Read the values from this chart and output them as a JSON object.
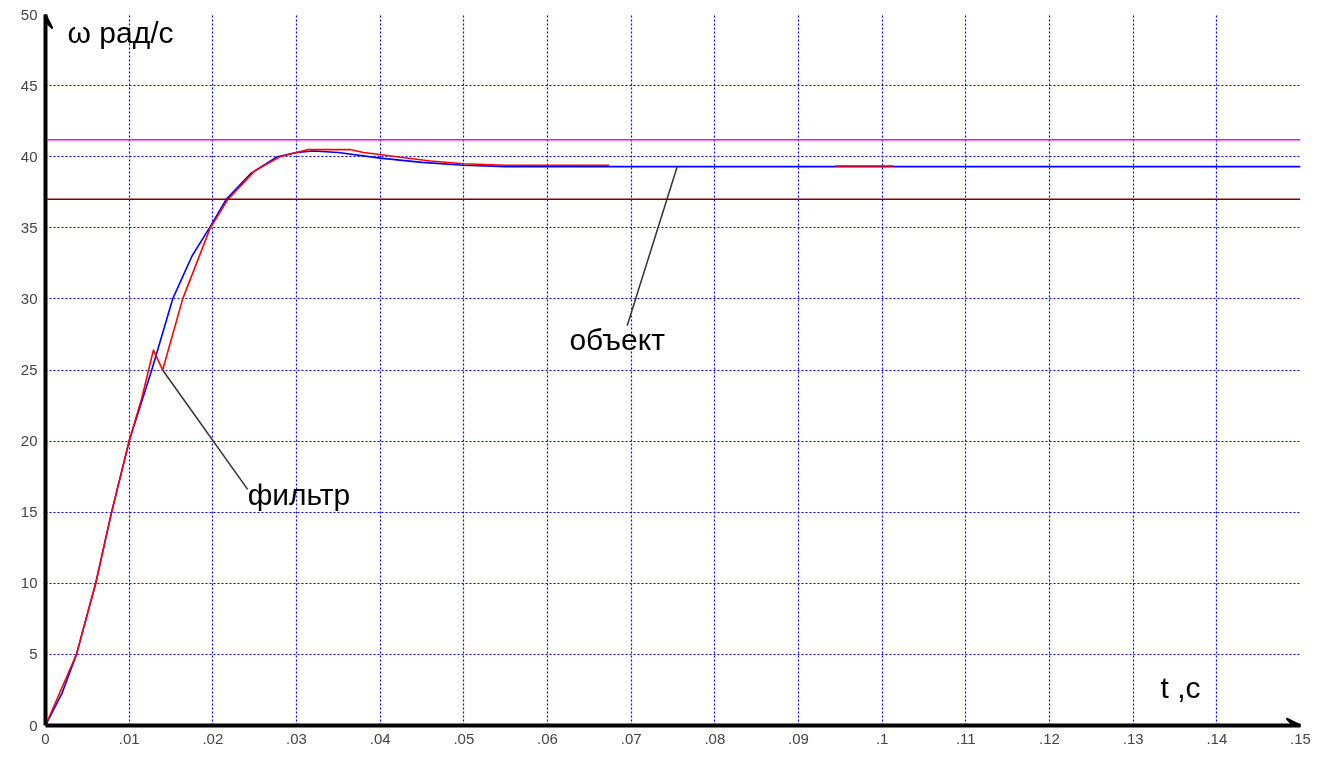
{
  "chart_data": {
    "type": "line",
    "xlabel": "t ,c",
    "ylabel": "ω  рад/с",
    "xlim": [
      0,
      0.15
    ],
    "ylim": [
      0,
      50
    ],
    "xticks": [
      0,
      {
        "value": 0.01,
        "label": ".01"
      },
      {
        "value": 0.02,
        "label": ".02"
      },
      {
        "value": 0.03,
        "label": ".03"
      },
      {
        "value": 0.04,
        "label": ".04"
      },
      {
        "value": 0.05,
        "label": ".05"
      },
      {
        "value": 0.06,
        "label": ".06"
      },
      {
        "value": 0.07,
        "label": ".07"
      },
      {
        "value": 0.08,
        "label": ".08"
      },
      {
        "value": 0.09,
        "label": ".09"
      },
      {
        "value": 0.1,
        "label": ".1"
      },
      {
        "value": 0.11,
        "label": ".11"
      },
      {
        "value": 0.12,
        "label": ".12"
      },
      {
        "value": 0.13,
        "label": ".13"
      },
      {
        "value": 0.14,
        "label": ".14"
      },
      {
        "value": 0.15,
        "label": ".15"
      }
    ],
    "yticks": [
      0,
      5,
      10,
      15,
      20,
      25,
      30,
      35,
      40,
      45,
      50
    ],
    "grid": true,
    "line_style": "solid",
    "marker": "none",
    "series": [
      {
        "color": "#0000ff",
        "x": [
          0,
          0.002,
          0.0037,
          0.006,
          0.0079,
          0.01,
          0.0127,
          0.0152,
          0.0175,
          0.0196,
          0.0216,
          0.0245,
          0.0277,
          0.03,
          0.032,
          0.035,
          0.04,
          0.045,
          0.05,
          0.055,
          0.06,
          0.08,
          0.1,
          0.12,
          0.15
        ],
        "values": [
          0,
          2.3,
          5,
          10,
          15,
          20,
          25,
          30,
          33,
          35,
          37,
          38.8,
          40,
          40.3,
          40.4,
          40.3,
          39.9,
          39.6,
          39.4,
          39.3,
          39.3,
          39.3,
          39.3,
          39.3,
          39.3
        ]
      },
      {
        "color": "#ff0000",
        "x": [
          0,
          0.0037,
          0.006,
          0.0079,
          0.01,
          0.0115,
          0.0129,
          0.014,
          0.0164,
          0.0197,
          0.0218,
          0.025,
          0.028,
          0.0314,
          0.0364,
          0.038,
          0.042,
          0.046,
          0.05,
          0.055,
          0.0674,
          0.08,
          0.0944,
          0.1014
        ],
        "values": [
          0,
          5,
          10,
          15,
          20,
          23,
          26.4,
          25,
          30,
          35,
          37,
          39,
          40,
          40.5,
          40.5,
          40.3,
          40.0,
          39.7,
          39.5,
          39.4,
          39.4,
          null,
          39.35,
          39.35
        ]
      }
    ],
    "ref_lines": [
      {
        "axis": "y",
        "value": 41.2,
        "color": "#ff00ff"
      },
      {
        "axis": "y",
        "value": 37,
        "color": "#800000"
      }
    ],
    "annotations": [
      {
        "text": "фильтр",
        "x": 0.014,
        "y": 25
      },
      {
        "text": "объект",
        "x": 0.0755,
        "y": 39.3
      }
    ]
  }
}
